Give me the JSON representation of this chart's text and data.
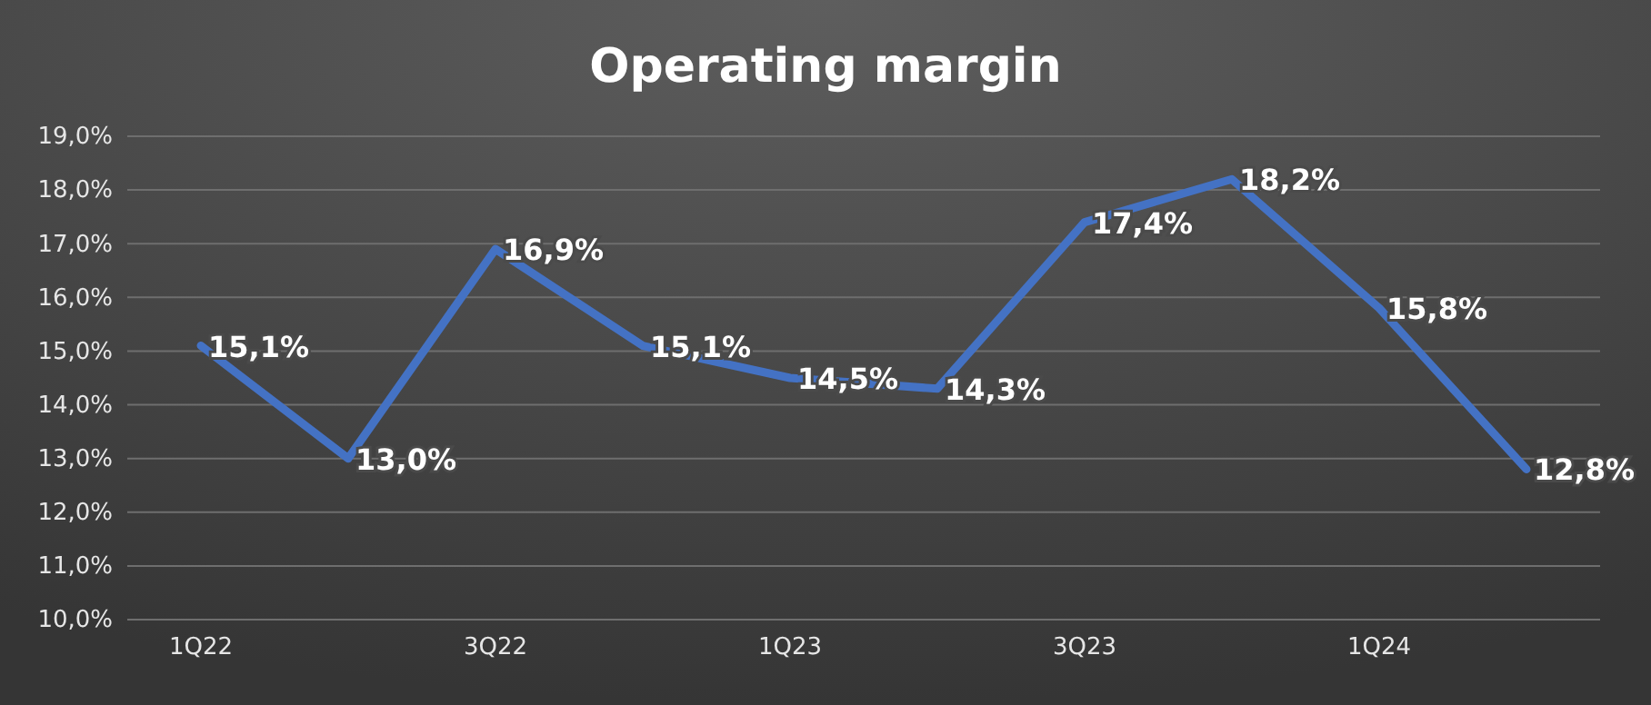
{
  "chart_data": {
    "type": "line",
    "title": "Operating margin",
    "categories": [
      "1Q22",
      null,
      "3Q22",
      null,
      "1Q23",
      null,
      "3Q23",
      null,
      "1Q24",
      null
    ],
    "series": [
      {
        "color": "#4472c4",
        "values": [
          15.1,
          13.0,
          16.9,
          15.1,
          14.5,
          14.3,
          17.4,
          18.2,
          15.8,
          12.8
        ],
        "value_labels": [
          "15,1%",
          "13,0%",
          "16,9%",
          "15,1%",
          "14,5%",
          "14,3%",
          "17,4%",
          "18,2%",
          "15,8%",
          "12,8%"
        ]
      }
    ],
    "ylim": [
      10,
      19
    ],
    "yticks": [
      {
        "value": 10,
        "label": "10,0%"
      },
      {
        "value": 11,
        "label": "11,0%"
      },
      {
        "value": 12,
        "label": "12,0%"
      },
      {
        "value": 13,
        "label": "13,0%"
      },
      {
        "value": 14,
        "label": "14,0%"
      },
      {
        "value": 15,
        "label": "15,0%"
      },
      {
        "value": 16,
        "label": "16,0%"
      },
      {
        "value": 17,
        "label": "17,0%"
      },
      {
        "value": 18,
        "label": "18,0%"
      },
      {
        "value": 19,
        "label": "19,0%"
      }
    ],
    "grid": "y",
    "line_style": "solid",
    "marker": "none"
  }
}
